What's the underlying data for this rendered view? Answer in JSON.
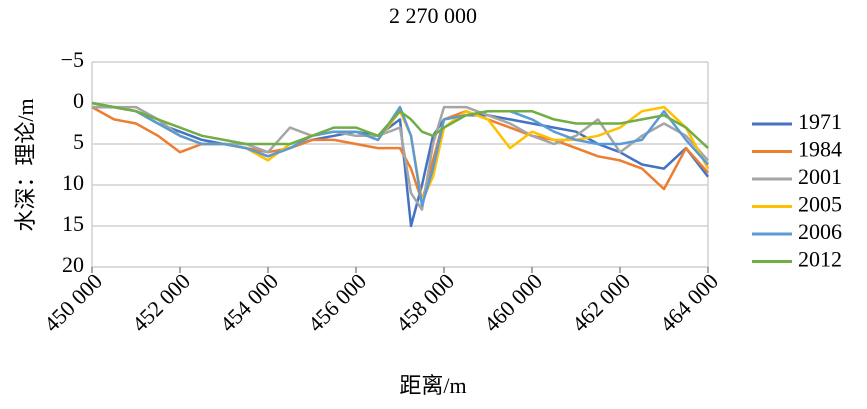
{
  "chart_data": {
    "type": "line",
    "title": "2 270 000",
    "xlabel": "距离/m",
    "ylabel": "水深：理论/m",
    "x": [
      450000,
      450500,
      451000,
      451500,
      452000,
      452500,
      453000,
      453500,
      454000,
      454500,
      455000,
      455500,
      456000,
      456500,
      457000,
      457250,
      457500,
      457750,
      458000,
      458500,
      459000,
      459500,
      460000,
      460500,
      461000,
      461500,
      462000,
      462500,
      463000,
      463500,
      464000
    ],
    "series": [
      {
        "name": "1971",
        "color": "#4472c4",
        "values": [
          0.5,
          0.5,
          1,
          2.5,
          3.5,
          4.5,
          5,
          5.5,
          6.5,
          5.5,
          4.5,
          4,
          3.5,
          4,
          2,
          15,
          10,
          4,
          2,
          1.5,
          1.5,
          2,
          2.5,
          3,
          3.5,
          5,
          6,
          7.5,
          8,
          5.5,
          9
        ]
      },
      {
        "name": "1984",
        "color": "#ed7d31",
        "values": [
          0.5,
          2,
          2.5,
          4,
          6,
          5,
          5,
          5.5,
          6,
          5.5,
          4.5,
          4.5,
          5,
          5.5,
          5.5,
          8,
          12,
          7,
          2,
          1,
          2,
          3,
          4,
          4.5,
          5.5,
          6.5,
          7,
          8,
          10.5,
          5.5,
          8.5
        ]
      },
      {
        "name": "2001",
        "color": "#a5a5a5",
        "values": [
          0.5,
          0.5,
          0.5,
          2,
          4,
          5,
          5,
          5,
          6,
          3,
          4,
          3.5,
          4,
          4,
          3,
          11,
          13,
          5,
          0.5,
          0.5,
          1.5,
          2.5,
          4,
          5,
          4,
          2,
          6,
          4,
          2.5,
          4,
          7
        ]
      },
      {
        "name": "2005",
        "color": "#ffc000",
        "values": [
          0,
          0.5,
          1,
          2.5,
          4,
          5,
          5,
          5.5,
          7,
          5,
          4,
          3.5,
          3.5,
          4.5,
          1,
          4,
          12,
          9,
          3,
          1,
          2,
          5.5,
          3.5,
          4.5,
          4.5,
          4,
          3,
          1,
          0.5,
          3,
          8
        ]
      },
      {
        "name": "2006",
        "color": "#5b9bd5",
        "values": [
          0,
          0.5,
          1,
          2.5,
          4,
          5,
          5,
          5.5,
          6.5,
          5.5,
          4,
          3.5,
          3.5,
          4.5,
          0.5,
          4,
          12.5,
          8,
          2,
          1.5,
          1,
          1,
          2,
          3.5,
          4.5,
          5,
          5,
          4.5,
          1,
          4.5,
          7.5
        ]
      },
      {
        "name": "2012",
        "color": "#70ad47",
        "values": [
          0,
          0.5,
          1,
          2,
          3,
          4,
          4.5,
          5,
          5,
          5,
          4,
          3,
          3,
          4,
          1,
          2,
          3.5,
          4,
          3,
          1.5,
          1,
          1,
          1,
          2,
          2.5,
          2.5,
          2.5,
          2,
          1.5,
          3,
          5.5
        ]
      }
    ],
    "xlim": [
      450000,
      464000
    ],
    "xticks": [
      {
        "value": 450000,
        "label": "450 000"
      },
      {
        "value": 452000,
        "label": "452 000"
      },
      {
        "value": 454000,
        "label": "454 000"
      },
      {
        "value": 456000,
        "label": "456 000"
      },
      {
        "value": 458000,
        "label": "458 000"
      },
      {
        "value": 460000,
        "label": "460 000"
      },
      {
        "value": 462000,
        "label": "462 000"
      },
      {
        "value": 464000,
        "label": "464 000"
      }
    ],
    "ylim": [
      -5,
      20
    ],
    "y_inverted": true,
    "yticks": [
      {
        "value": -5,
        "label": "−5"
      },
      0,
      5,
      10,
      15,
      20
    ],
    "grid": true,
    "legend": "right"
  }
}
